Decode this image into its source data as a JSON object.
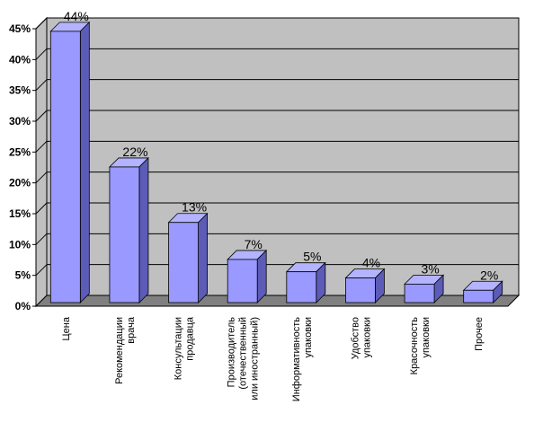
{
  "chart_data": {
    "type": "bar",
    "title": "",
    "xlabel": "",
    "ylabel": "",
    "ylim": [
      0,
      45
    ],
    "grid": true,
    "legend": "none",
    "y_ticks": [
      "0%",
      "5%",
      "10%",
      "15%",
      "20%",
      "25%",
      "30%",
      "35%",
      "40%",
      "45%"
    ],
    "categories": [
      [
        "Цена"
      ],
      [
        "Рекомендации",
        "врача"
      ],
      [
        "Консультации",
        "продавца"
      ],
      [
        "Производитель",
        "(отечественный",
        "или иностранный)"
      ],
      [
        "Информативность",
        "упаковки"
      ],
      [
        "Удобство",
        "упаковки"
      ],
      [
        "Красочность",
        "упаковки"
      ],
      [
        "Прочее"
      ]
    ],
    "values": [
      44,
      22,
      13,
      7,
      5,
      4,
      3,
      2
    ],
    "data_labels": [
      "44%",
      "22%",
      "13%",
      "7%",
      "5%",
      "4%",
      "3%",
      "2%"
    ],
    "colors": {
      "bar_front": "#9999ff",
      "bar_side": "#5c5cb8",
      "bar_top": "#b3b3ff",
      "wall": "#c0c0c0",
      "floor": "#808080",
      "gridline": "#000000"
    }
  }
}
